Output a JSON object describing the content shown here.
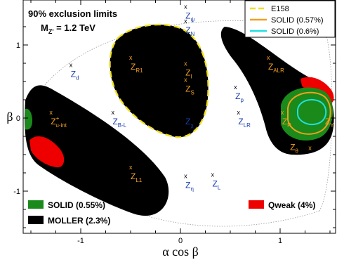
{
  "chart_data": {
    "type": "scatter",
    "title": "90% exclusion limits",
    "subtitle": {
      "prefix": "M",
      "sub": "Z'",
      "suffix": " = 1.2 TeV"
    },
    "xlabel": "α cos β",
    "ylabel": "β",
    "xlim": [
      -1.6,
      1.6
    ],
    "ylim": [
      -1.5,
      1.45
    ],
    "x_ticks": [
      {
        "value": -1,
        "label": "-1"
      },
      {
        "value": 0,
        "label": "0"
      },
      {
        "value": 1,
        "label": "1"
      }
    ],
    "y_ticks": [
      {
        "value": -1,
        "label": "-1"
      },
      {
        "value": 0,
        "label": "0"
      },
      {
        "value": 1,
        "label": "1"
      }
    ],
    "grid": false,
    "colors": {
      "moller": "#000000",
      "solid_055": "#1a8a1a",
      "qweak": "#ee0000",
      "e158": "#f0e020",
      "solid_057": "#f0a020",
      "solid_06": "#20e0e0",
      "label_orange": "#f0a020",
      "label_blue": "#1a3fb0"
    },
    "models": [
      {
        "id": "psi",
        "sym": "Z",
        "sub": "ψ",
        "sup": "",
        "x": 0.05,
        "y": 1.4,
        "color": "blue",
        "mark": "above"
      },
      {
        "id": "N",
        "sym": "Z",
        "sub": "N",
        "sup": "",
        "x": 0.05,
        "y": 1.2,
        "color": "blue",
        "mark": "above"
      },
      {
        "id": "d",
        "sym": "Z",
        "sub": "d",
        "sup": "",
        "x": -1.1,
        "y": 0.6,
        "color": "blue",
        "mark": "above"
      },
      {
        "id": "R1",
        "sym": "Z",
        "sub": "R1",
        "sup": "",
        "x": -0.5,
        "y": 0.7,
        "color": "orange",
        "mark": "above"
      },
      {
        "id": "I",
        "sym": "Z",
        "sub": "I",
        "sup": "",
        "x": 0.05,
        "y": 0.62,
        "color": "orange",
        "mark": "above"
      },
      {
        "id": "S",
        "sym": "Z",
        "sub": "S",
        "sup": "",
        "x": 0.05,
        "y": 0.4,
        "color": "orange",
        "mark": "above"
      },
      {
        "id": "chi",
        "sym": "Z",
        "sub": "χ",
        "sup": "",
        "x": 0.05,
        "y": -0.05,
        "color": "blue",
        "mark": "above"
      },
      {
        "id": "B-L",
        "sym": "Z",
        "sub": "B-L",
        "sup": "",
        "x": -0.68,
        "y": -0.05,
        "color": "blue",
        "mark": "above"
      },
      {
        "id": "u-int",
        "sym": "Z",
        "sub": "u-int",
        "sup": "+",
        "x": -1.3,
        "y": -0.05,
        "color": "orange",
        "mark": "above"
      },
      {
        "id": "ALR",
        "sym": "Z",
        "sub": "ALR",
        "sup": "",
        "x": 0.88,
        "y": 0.7,
        "color": "orange",
        "mark": "above"
      },
      {
        "id": "p",
        "sym": "Z",
        "sub": "p",
        "sup": "",
        "x": 0.55,
        "y": 0.3,
        "color": "blue",
        "mark": "above"
      },
      {
        "id": "LR",
        "sym": "Z",
        "sub": "LR",
        "sup": "",
        "x": 0.58,
        "y": -0.05,
        "color": "blue",
        "mark": "above"
      },
      {
        "id": "R",
        "sym": "Z",
        "sub": "R",
        "sup": "",
        "x": 1.02,
        "y": -0.05,
        "color": "orange",
        "mark": "above"
      },
      {
        "id": "theta",
        "sym": "Z",
        "sub": "θ",
        "sup": "",
        "x": 1.1,
        "y": -0.4,
        "color": "orange",
        "mark": "right"
      },
      {
        "id": "L1",
        "sym": "Z",
        "sub": "L1",
        "sup": "",
        "x": -0.5,
        "y": -0.8,
        "color": "orange",
        "mark": "above"
      },
      {
        "id": "eta",
        "sym": "Z",
        "sub": "η",
        "sup": "",
        "x": 0.05,
        "y": -0.92,
        "color": "blue",
        "mark": "above"
      },
      {
        "id": "L",
        "sym": "Z",
        "sub": "L",
        "sup": "",
        "x": 0.32,
        "y": -0.9,
        "color": "blue",
        "mark": "above"
      },
      {
        "id": "Y",
        "sym": "Z",
        "sub": "Y",
        "sup": "",
        "x": 1.45,
        "y": -0.05,
        "color": "orange",
        "mark": "right"
      }
    ],
    "legend_top_right": [
      {
        "label": "E158",
        "style": "dashed",
        "color": "#f0e020"
      },
      {
        "label": "SOLID (0.57%)",
        "style": "solid",
        "color": "#f0a020"
      },
      {
        "label": "SOLID (0.6%)",
        "style": "solid",
        "color": "#20e0e0"
      }
    ],
    "legend_bottom": [
      {
        "label": "SOLID (0.55%)",
        "color": "#1a8a1a",
        "placement": "bottom-left"
      },
      {
        "label": "MOLLER (2.3%)",
        "color": "#000000",
        "placement": "bottom-left"
      },
      {
        "label": "Qweak (4%)",
        "color": "#ee0000",
        "placement": "bottom-right"
      }
    ]
  }
}
